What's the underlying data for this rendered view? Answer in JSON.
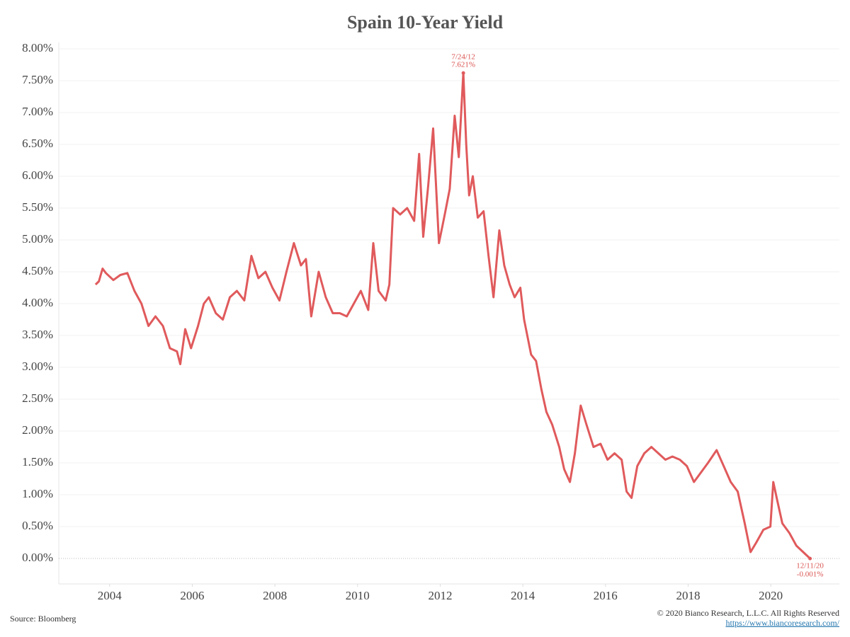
{
  "chart_data": {
    "type": "line",
    "title": "Spain 10-Year Yield",
    "x": [
      2003.66,
      2003.74,
      2003.83,
      2003.91,
      2004.09,
      2004.26,
      2004.43,
      2004.6,
      2004.77,
      2004.94,
      2005.11,
      2005.29,
      2005.46,
      2005.63,
      2005.71,
      2005.83,
      2005.97,
      2006.14,
      2006.28,
      2006.4,
      2006.57,
      2006.74,
      2006.91,
      2007.08,
      2007.26,
      2007.43,
      2007.6,
      2007.77,
      2007.94,
      2008.11,
      2008.28,
      2008.46,
      2008.63,
      2008.75,
      2008.88,
      2009.06,
      2009.23,
      2009.4,
      2009.57,
      2009.74,
      2009.91,
      2010.08,
      2010.26,
      2010.38,
      2010.51,
      2010.68,
      2010.77,
      2010.86,
      2011.03,
      2011.2,
      2011.37,
      2011.49,
      2011.59,
      2011.71,
      2011.83,
      2011.97,
      2012.11,
      2012.23,
      2012.35,
      2012.45,
      2012.56,
      2012.63,
      2012.7,
      2012.79,
      2012.91,
      2013.05,
      2013.17,
      2013.29,
      2013.43,
      2013.55,
      2013.68,
      2013.8,
      2013.94,
      2014.03,
      2014.2,
      2014.32,
      2014.45,
      2014.57,
      2014.71,
      2014.88,
      2015.0,
      2015.14,
      2015.26,
      2015.4,
      2015.54,
      2015.71,
      2015.88,
      2016.05,
      2016.22,
      2016.39,
      2016.51,
      2016.63,
      2016.77,
      2016.94,
      2017.11,
      2017.28,
      2017.45,
      2017.62,
      2017.8,
      2017.97,
      2018.14,
      2018.31,
      2018.48,
      2018.69,
      2018.86,
      2019.03,
      2019.2,
      2019.37,
      2019.51,
      2019.65,
      2019.82,
      2019.99,
      2020.06,
      2020.16,
      2020.28,
      2020.45,
      2020.62,
      2020.95
    ],
    "series": [
      {
        "color": "#e05a5c",
        "values": [
          4.3,
          4.35,
          4.55,
          4.48,
          4.37,
          4.45,
          4.48,
          4.2,
          4.0,
          3.65,
          3.8,
          3.65,
          3.3,
          3.25,
          3.05,
          3.6,
          3.3,
          3.65,
          4.0,
          4.1,
          3.85,
          3.75,
          4.1,
          4.2,
          4.05,
          4.75,
          4.4,
          4.5,
          4.25,
          4.05,
          4.5,
          4.95,
          4.6,
          4.7,
          3.8,
          4.5,
          4.1,
          3.85,
          3.85,
          3.8,
          4.0,
          4.2,
          3.9,
          4.95,
          4.2,
          4.05,
          4.3,
          5.5,
          5.4,
          5.5,
          5.3,
          6.35,
          5.05,
          5.85,
          6.75,
          4.95,
          5.4,
          5.8,
          6.95,
          6.3,
          7.621,
          6.5,
          5.7,
          6.0,
          5.35,
          5.45,
          4.75,
          4.1,
          5.15,
          4.6,
          4.3,
          4.1,
          4.25,
          3.75,
          3.2,
          3.1,
          2.65,
          2.3,
          2.1,
          1.75,
          1.4,
          1.2,
          1.65,
          2.4,
          2.1,
          1.75,
          1.8,
          1.55,
          1.65,
          1.55,
          1.05,
          0.95,
          1.45,
          1.65,
          1.75,
          1.65,
          1.55,
          1.6,
          1.55,
          1.45,
          1.2,
          1.35,
          1.5,
          1.7,
          1.45,
          1.2,
          1.05,
          0.55,
          0.1,
          0.25,
          0.45,
          0.5,
          1.2,
          0.9,
          0.55,
          0.4,
          0.2,
          -0.001
        ]
      }
    ],
    "annotations": [
      {
        "date": "7/24/12",
        "label": "7.621%",
        "x": 2012.56,
        "y": 7.621
      },
      {
        "date": "12/11/20",
        "label": "-0.001%",
        "x": 2020.95,
        "y": -0.001
      }
    ],
    "xlim": [
      2002.77,
      2021.66
    ],
    "xticks": [
      2004,
      2006,
      2008,
      2010,
      2012,
      2014,
      2016,
      2018,
      2020
    ],
    "ylim": [
      -0.4,
      8.1
    ],
    "yticks": [
      {
        "value": 0,
        "label": "0.00%"
      },
      {
        "value": 0.5,
        "label": "0.50%"
      },
      {
        "value": 1,
        "label": "1.00%"
      },
      {
        "value": 1.5,
        "label": "1.50%"
      },
      {
        "value": 2,
        "label": "2.00%"
      },
      {
        "value": 2.5,
        "label": "2.50%"
      },
      {
        "value": 3,
        "label": "3.00%"
      },
      {
        "value": 3.5,
        "label": "3.50%"
      },
      {
        "value": 4,
        "label": "4.00%"
      },
      {
        "value": 4.5,
        "label": "4.50%"
      },
      {
        "value": 5,
        "label": "5.00%"
      },
      {
        "value": 5.5,
        "label": "5.50%"
      },
      {
        "value": 6,
        "label": "6.00%"
      },
      {
        "value": 6.5,
        "label": "6.50%"
      },
      {
        "value": 7,
        "label": "7.00%"
      },
      {
        "value": 7.5,
        "label": "7.50%"
      },
      {
        "value": 8,
        "label": "8.00%"
      }
    ],
    "grid": true,
    "source": "Source: Bloomberg",
    "copyright": "© 2020 Bianco Research, L.L.C. All Rights Reserved",
    "url": "https://www.biancoresearch.com/"
  }
}
